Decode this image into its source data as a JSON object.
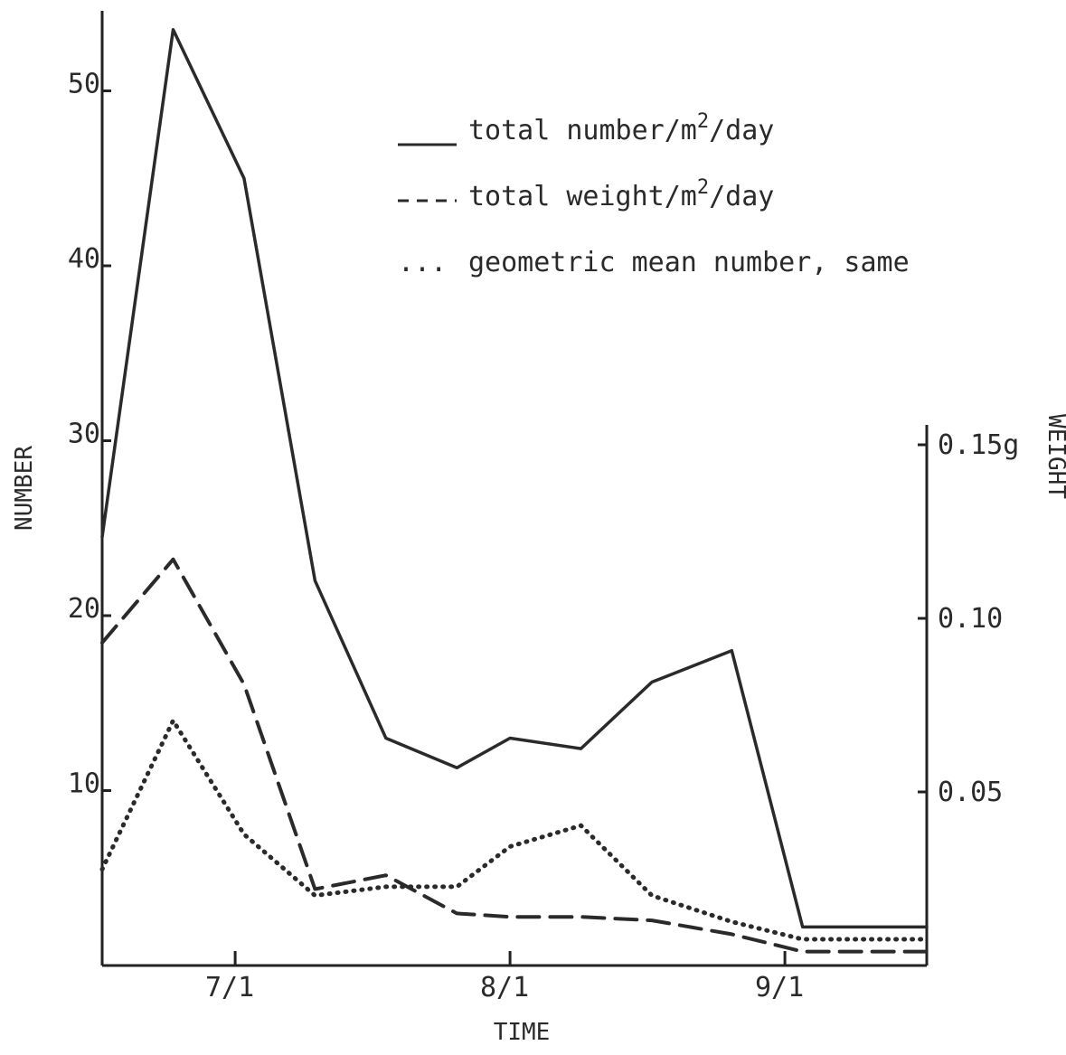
{
  "chart_data": {
    "type": "line",
    "xlabel": "TIME",
    "ylabel_left": "NUMBER",
    "ylabel_right": "WEIGHT",
    "x_ticks": [
      "7/1",
      "8/1",
      "9/1"
    ],
    "y_ticks_left": [
      "10",
      "20",
      "30",
      "40",
      "50"
    ],
    "y_ticks_right": [
      "0.05",
      "0.10",
      "0.15g"
    ],
    "x_date_range": [
      "6/16",
      "9/17"
    ],
    "ylim_left": [
      0,
      55
    ],
    "ylim_right": [
      0,
      0.15
    ],
    "grid": false,
    "legend_position": "top-right",
    "legend": [
      {
        "symbol": "____",
        "label": "total number/m",
        "sup": "2",
        "after": "/day"
      },
      {
        "symbol": "---",
        "label": "total weight/m",
        "sup": "2",
        "after": "/day"
      },
      {
        "symbol": "...",
        "label": "geometric mean number, same",
        "sup": "",
        "after": ""
      }
    ],
    "series": [
      {
        "axis": "left",
        "style": "solid",
        "x": [
          "6/16",
          "6/24",
          "7/2",
          "7/10",
          "7/18",
          "7/26",
          "8/1",
          "8/9",
          "8/17",
          "8/26",
          "9/3",
          "9/17"
        ],
        "values": [
          24.5,
          53.5,
          45,
          22,
          13,
          11.3,
          13,
          12.4,
          16.2,
          18,
          2.2,
          2.2
        ]
      },
      {
        "axis": "right",
        "style": "dashed",
        "x": [
          "6/16",
          "6/24",
          "7/2",
          "7/10",
          "7/18",
          "7/26",
          "8/1",
          "8/9",
          "8/17",
          "8/26",
          "9/3",
          "9/17"
        ],
        "values": [
          0.093,
          0.117,
          0.081,
          0.022,
          0.026,
          0.015,
          0.014,
          0.014,
          0.013,
          0.009,
          0.004,
          0.004
        ]
      },
      {
        "axis": "left",
        "style": "dotted",
        "x": [
          "6/16",
          "6/24",
          "7/2",
          "7/10",
          "7/18",
          "7/26",
          "8/1",
          "8/9",
          "8/17",
          "8/26",
          "9/3",
          "9/17"
        ],
        "values": [
          5.5,
          14,
          7.5,
          4,
          4.5,
          4.5,
          6.8,
          8,
          4,
          2.5,
          1.5,
          1.5
        ]
      }
    ]
  }
}
